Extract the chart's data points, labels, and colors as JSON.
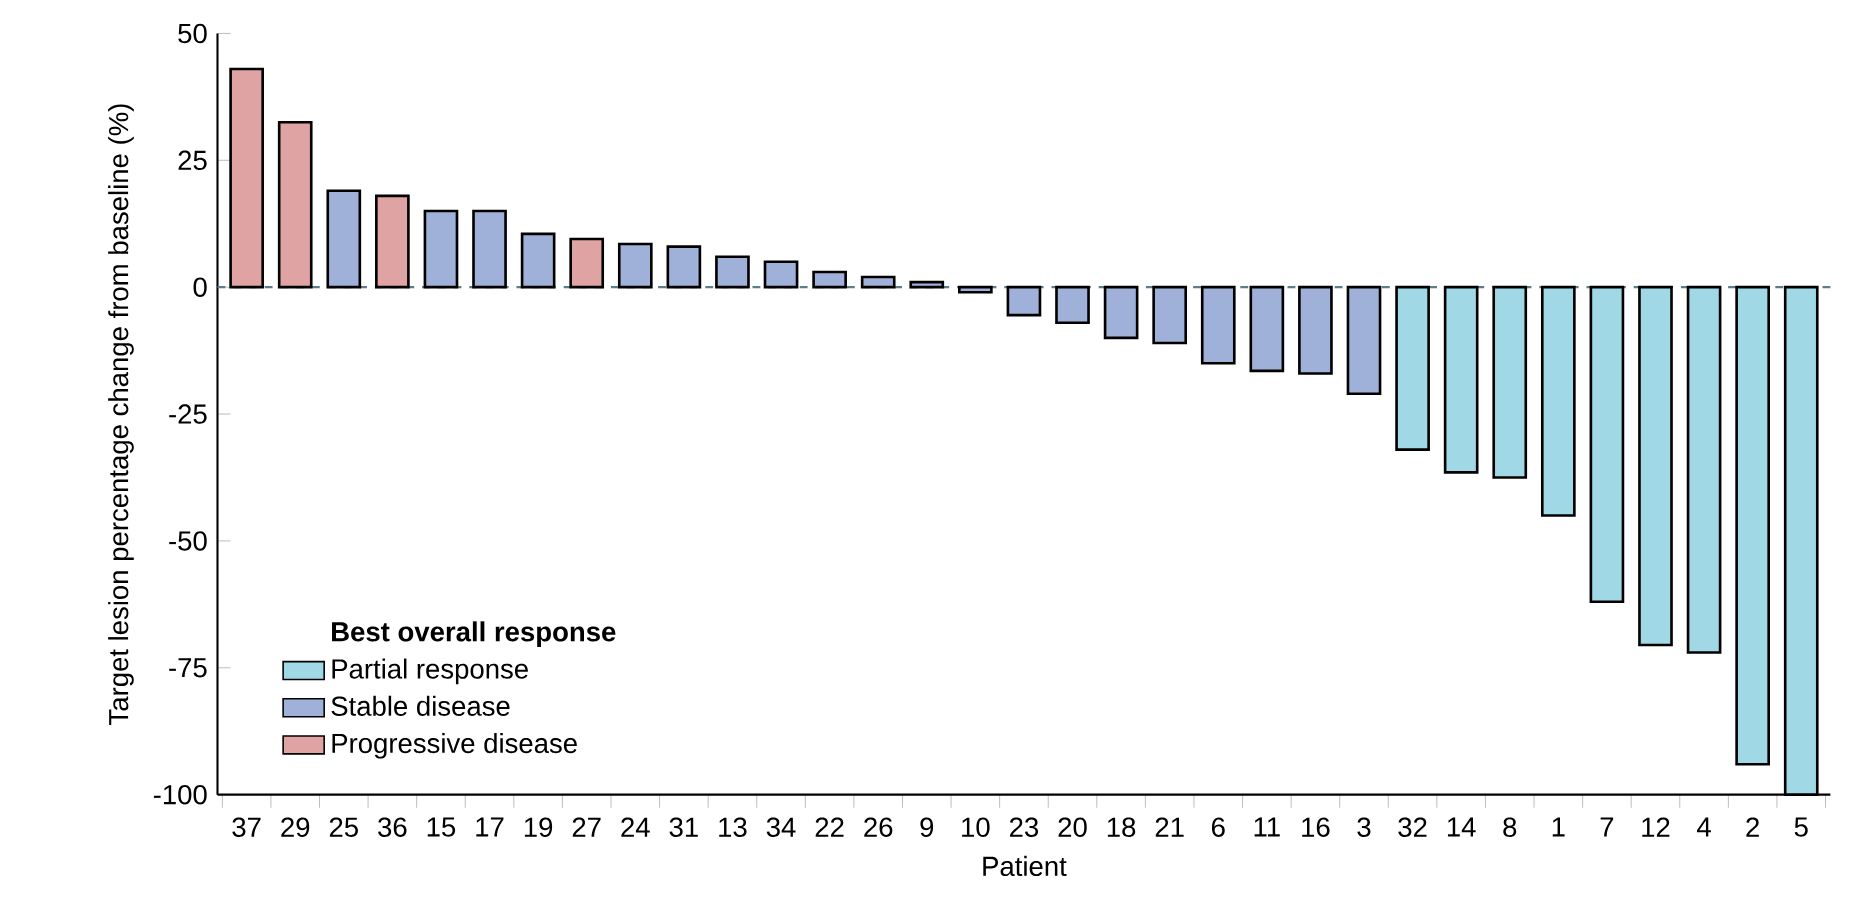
{
  "chart_data": {
    "type": "bar",
    "xlabel": "Patient",
    "ylabel": "Target lesion percentage change from baseline (%)",
    "legend_title": "Best overall response",
    "categories": [
      "37",
      "29",
      "25",
      "36",
      "15",
      "17",
      "19",
      "27",
      "24",
      "31",
      "13",
      "34",
      "22",
      "26",
      "9",
      "10",
      "23",
      "20",
      "18",
      "21",
      "6",
      "11",
      "16",
      "3",
      "32",
      "14",
      "8",
      "1",
      "7",
      "12",
      "4",
      "2",
      "5"
    ],
    "series": [
      {
        "name": "Partial response",
        "color": "#a1d8e6",
        "values": [
          null,
          null,
          null,
          null,
          null,
          null,
          null,
          null,
          null,
          null,
          null,
          null,
          null,
          null,
          null,
          null,
          null,
          null,
          null,
          null,
          null,
          null,
          null,
          null,
          -32,
          -36.5,
          -37.5,
          -45,
          -62,
          -70.5,
          -72,
          -94,
          -100
        ]
      },
      {
        "name": "Stable disease",
        "color": "#a0b1d9",
        "values": [
          null,
          null,
          19,
          null,
          15,
          15,
          10.5,
          null,
          8.5,
          8,
          6,
          5,
          3,
          2,
          1,
          -1,
          -5.5,
          -7,
          -10,
          -11,
          -15,
          -16.5,
          -17,
          -21,
          null,
          null,
          null,
          null,
          null,
          null,
          null,
          null,
          null
        ]
      },
      {
        "name": "Progressive disease",
        "color": "#e0a3a3",
        "values": [
          43,
          32.5,
          null,
          18,
          null,
          null,
          null,
          9.5,
          null,
          null,
          null,
          null,
          null,
          null,
          null,
          null,
          null,
          null,
          null,
          null,
          null,
          null,
          null,
          null,
          null,
          null,
          null,
          null,
          null,
          null,
          null,
          null,
          null
        ]
      }
    ],
    "ylim": [
      -100,
      50
    ],
    "yticks": [
      50,
      25,
      0,
      -25,
      -50,
      -75,
      -100
    ],
    "ref_lines": [
      {
        "axis": "y",
        "value": 0,
        "line_style": "dashed",
        "color": "#5a7f8a"
      }
    ],
    "grid": false,
    "legend": "bottom left"
  }
}
